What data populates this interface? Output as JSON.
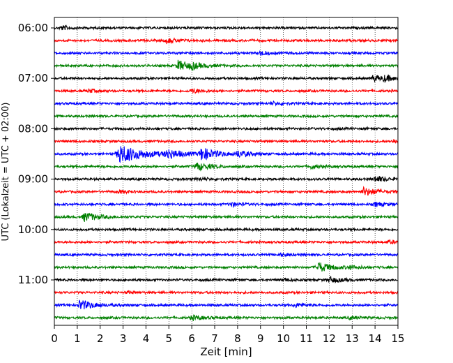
{
  "chart_data": {
    "type": "line",
    "title": "",
    "xlabel": "Zeit  [min]",
    "ylabel": "UTC (Lokalzeit = UTC + 02:00)",
    "xlim": [
      0,
      15
    ],
    "x_ticks": [
      "0",
      "1",
      "2",
      "3",
      "4",
      "5",
      "6",
      "7",
      "8",
      "9",
      "10",
      "11",
      "12",
      "13",
      "14",
      "15"
    ],
    "y_tick_labels": [
      "06:00",
      "07:00",
      "08:00",
      "09:00",
      "10:00",
      "11:00"
    ],
    "grid": "vertical dotted",
    "trace_interval_minutes": 15,
    "color_cycle": [
      "#000000",
      "#ff0000",
      "#0000ff",
      "#008000"
    ],
    "traces": [
      {
        "start": "06:00",
        "events": [
          {
            "t": 0.3,
            "a": 0.4
          }
        ]
      },
      {
        "start": "06:15",
        "events": [
          {
            "t": 4.9,
            "a": 0.5
          }
        ]
      },
      {
        "start": "06:30",
        "events": [
          {
            "t": 9.0,
            "a": 0.4
          }
        ]
      },
      {
        "start": "06:45",
        "events": [
          {
            "t": 5.4,
            "a": 1.0
          },
          {
            "t": 6.0,
            "a": 0.4
          }
        ]
      },
      {
        "start": "07:00",
        "events": [
          {
            "t": 13.9,
            "a": 0.6
          },
          {
            "t": 14.4,
            "a": 0.5
          }
        ]
      },
      {
        "start": "07:15",
        "events": [
          {
            "t": 1.5,
            "a": 0.3
          },
          {
            "t": 6.0,
            "a": 0.4
          }
        ]
      },
      {
        "start": "07:30",
        "events": [
          {
            "t": 9.5,
            "a": 0.3
          }
        ]
      },
      {
        "start": "07:45",
        "events": []
      },
      {
        "start": "08:00",
        "events": []
      },
      {
        "start": "08:15",
        "events": [
          {
            "t": 14.8,
            "a": 0.4
          }
        ]
      },
      {
        "start": "08:30",
        "events": [
          {
            "t": 2.8,
            "a": 2.0
          },
          {
            "t": 4.9,
            "a": 0.9
          },
          {
            "t": 6.4,
            "a": 1.2
          },
          {
            "t": 8.0,
            "a": 0.6
          }
        ]
      },
      {
        "start": "08:45",
        "events": [
          {
            "t": 6.2,
            "a": 0.8
          },
          {
            "t": 11.2,
            "a": 0.4
          }
        ]
      },
      {
        "start": "09:00",
        "events": [
          {
            "t": 6.3,
            "a": 0.3
          },
          {
            "t": 14.0,
            "a": 0.6
          }
        ]
      },
      {
        "start": "09:15",
        "events": [
          {
            "t": 2.8,
            "a": 0.3
          },
          {
            "t": 13.5,
            "a": 0.8
          }
        ]
      },
      {
        "start": "09:30",
        "events": [
          {
            "t": 7.7,
            "a": 0.4
          },
          {
            "t": 14.0,
            "a": 0.4
          }
        ]
      },
      {
        "start": "09:45",
        "events": [
          {
            "t": 1.3,
            "a": 0.9
          }
        ]
      },
      {
        "start": "10:00",
        "events": []
      },
      {
        "start": "10:15",
        "events": [
          {
            "t": 14.6,
            "a": 0.3
          }
        ]
      },
      {
        "start": "10:30",
        "events": [
          {
            "t": 9.8,
            "a": 0.3
          }
        ]
      },
      {
        "start": "10:45",
        "events": [
          {
            "t": 11.5,
            "a": 1.0
          },
          {
            "t": 12.9,
            "a": 0.3
          }
        ]
      },
      {
        "start": "11:00",
        "events": [
          {
            "t": 12.0,
            "a": 0.6
          },
          {
            "t": 10.0,
            "a": 0.3
          }
        ]
      },
      {
        "start": "11:15",
        "events": [
          {
            "t": 3.2,
            "a": 0.2
          }
        ]
      },
      {
        "start": "11:30",
        "events": [
          {
            "t": 1.1,
            "a": 1.0
          },
          {
            "t": 10.5,
            "a": 0.4
          }
        ]
      },
      {
        "start": "11:45",
        "events": [
          {
            "t": 6.0,
            "a": 0.5
          },
          {
            "t": 12.9,
            "a": 0.3
          }
        ]
      }
    ]
  }
}
